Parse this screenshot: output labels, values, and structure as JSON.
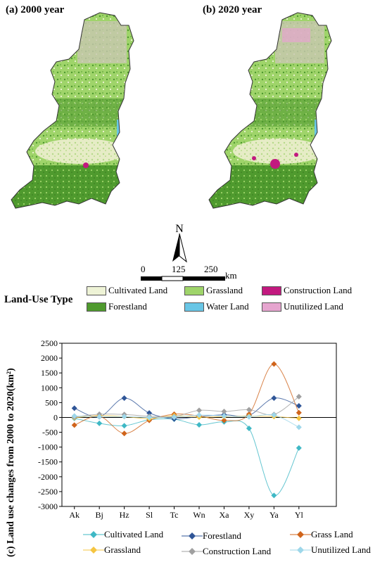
{
  "maps": {
    "a": {
      "title": "(a) 2000 year"
    },
    "b": {
      "title": "(b) 2020 year"
    }
  },
  "north_arrow": {
    "label": "N"
  },
  "scale_bar": {
    "labels": [
      "0",
      "125",
      "250"
    ],
    "unit": "km"
  },
  "legend": {
    "title": "Land-Use Type",
    "items": [
      {
        "label": "Cultivated Land",
        "color": "#eef3d6"
      },
      {
        "label": "Grassland",
        "color": "#9fd46a"
      },
      {
        "label": "Construction Land",
        "color": "#c2197f"
      },
      {
        "label": "Forestland",
        "color": "#4f9a2e"
      },
      {
        "label": "Water Land",
        "color": "#69c6e6"
      },
      {
        "label": "Unutilized Land",
        "color": "#e6a5cf"
      }
    ]
  },
  "colors": {
    "cultivated": "#eef3d6",
    "grassland": "#9fd46a",
    "forest": "#4f9a2e",
    "water": "#69c6e6",
    "construction": "#c2197f",
    "unutilized": "#e6a5cf"
  },
  "chart_data": {
    "type": "line",
    "ylabel": "(c) Land use changes from 2000 to 2020(km²)",
    "ylim": [
      -3000,
      2500
    ],
    "yticks": [
      -3000,
      -2500,
      -2000,
      -1500,
      -1000,
      -500,
      0,
      500,
      1000,
      1500,
      2000,
      2500
    ],
    "categories": [
      "Ak",
      "Bj",
      "Hz",
      "Sl",
      "Tc",
      "Wn",
      "Xa",
      "Xy",
      "Ya",
      "Yl"
    ],
    "series": [
      {
        "name": "Cultivated Land",
        "color": "#3fb8c5",
        "values": [
          -30,
          -200,
          -280,
          -80,
          -60,
          -250,
          -150,
          -370,
          -2630,
          -1030
        ]
      },
      {
        "name": "Forestland",
        "color": "#2f5597",
        "values": [
          310,
          20,
          650,
          150,
          -50,
          30,
          90,
          70,
          650,
          390
        ]
      },
      {
        "name": "Grass Land",
        "color": "#d0641b",
        "values": [
          -260,
          40,
          -540,
          -100,
          110,
          50,
          -100,
          110,
          1800,
          160
        ]
      },
      {
        "name": "Grassland",
        "color": "#f5c542",
        "values": [
          -10,
          60,
          30,
          -40,
          60,
          10,
          30,
          40,
          30,
          -30
        ]
      },
      {
        "name": "Construction Land",
        "color": "#a0a0a0",
        "values": [
          10,
          110,
          100,
          40,
          30,
          240,
          200,
          260,
          100,
          700
        ]
      },
      {
        "name": "Unutilized Land",
        "color": "#9ed7ea",
        "values": [
          50,
          20,
          30,
          0,
          10,
          80,
          50,
          20,
          80,
          -330
        ]
      }
    ],
    "legend_placement": "bottom",
    "grid": false
  }
}
